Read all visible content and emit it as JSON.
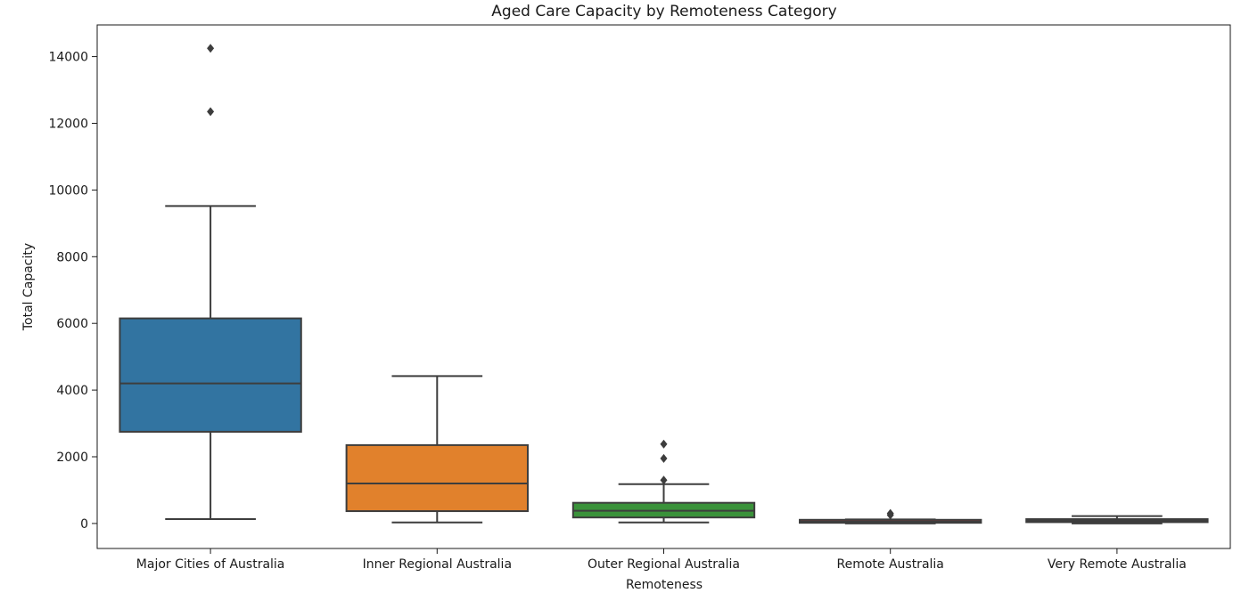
{
  "chart_data": {
    "type": "box",
    "title": "Aged Care Capacity by Remoteness Category",
    "xlabel": "Remoteness",
    "ylabel": "Total Capacity",
    "ylim": [
      -750,
      14950
    ],
    "yticks": [
      0,
      2000,
      4000,
      6000,
      8000,
      10000,
      12000,
      14000
    ],
    "grid": false,
    "legend": "none",
    "categories": [
      "Major Cities of Australia",
      "Inner Regional Australia",
      "Outer Regional Australia",
      "Remote Australia",
      "Very Remote Australia"
    ],
    "boxes": [
      {
        "category": "Major Cities of Australia",
        "whisker_low": 130,
        "q1": 2750,
        "median": 4200,
        "q3": 6150,
        "whisker_high": 9520,
        "outliers": [
          12350,
          14250
        ],
        "color": "#3274a1"
      },
      {
        "category": "Inner Regional Australia",
        "whisker_low": 30,
        "q1": 370,
        "median": 1200,
        "q3": 2350,
        "whisker_high": 4420,
        "outliers": [],
        "color": "#e1812c"
      },
      {
        "category": "Outer Regional Australia",
        "whisker_low": 30,
        "q1": 180,
        "median": 380,
        "q3": 620,
        "whisker_high": 1180,
        "outliers": [
          1300,
          1950,
          2380
        ],
        "color": "#3a923a"
      },
      {
        "category": "Remote Australia",
        "whisker_low": 0,
        "q1": 20,
        "median": 55,
        "q3": 110,
        "whisker_high": 120,
        "outliers": [
          250,
          300
        ],
        "color": "#c03d3e"
      },
      {
        "category": "Very Remote Australia",
        "whisker_low": 0,
        "q1": 40,
        "median": 80,
        "q3": 130,
        "whisker_high": 220,
        "outliers": [],
        "color": "#9372b2"
      }
    ]
  }
}
